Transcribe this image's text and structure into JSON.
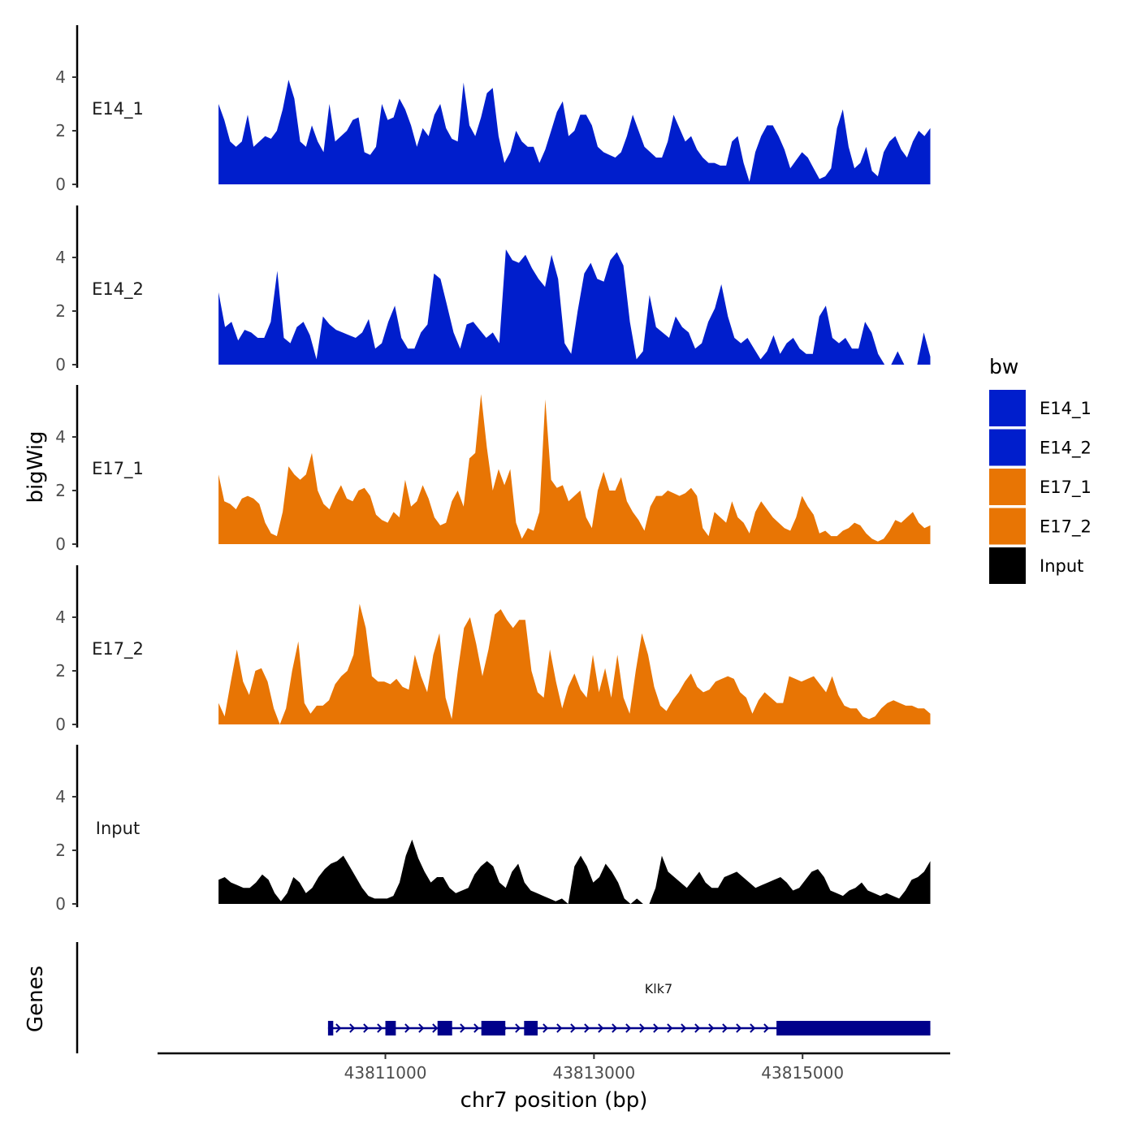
{
  "chart_data": {
    "type": "area",
    "chromosome": "chr7",
    "xlabel": "chr7 position (bp)",
    "ylabel": "bigWig",
    "ylim": [
      0,
      6
    ],
    "yticks": [
      0,
      2,
      4
    ],
    "xlim": [
      43808800,
      43816400
    ],
    "xticks": [
      {
        "value": 43811000,
        "label": "43811000"
      },
      {
        "value": 43813000,
        "label": "43813000"
      },
      {
        "value": 43815000,
        "label": "43815000"
      }
    ],
    "signal_range": [
      43809400,
      43816225
    ],
    "legend": {
      "title": "bw",
      "entries": [
        {
          "name": "E14_1",
          "color": "#001ecc"
        },
        {
          "name": "E14_2",
          "color": "#001ecc"
        },
        {
          "name": "E17_1",
          "color": "#e87504"
        },
        {
          "name": "E17_2",
          "color": "#e87504"
        },
        {
          "name": "Input",
          "color": "#000000"
        }
      ]
    },
    "series": [
      {
        "name": "E14_1",
        "color": "#001ecc",
        "values": [
          3.0,
          2.4,
          1.6,
          1.4,
          1.6,
          2.6,
          1.4,
          1.6,
          1.8,
          1.7,
          2.0,
          2.8,
          3.9,
          3.2,
          1.6,
          1.4,
          2.2,
          1.6,
          1.2,
          3.0,
          1.6,
          1.8,
          2.0,
          2.4,
          2.5,
          1.2,
          1.1,
          1.4,
          3.0,
          2.4,
          2.5,
          3.2,
          2.8,
          2.2,
          1.4,
          2.1,
          1.8,
          2.6,
          3.0,
          2.1,
          1.7,
          1.6,
          3.8,
          2.2,
          1.8,
          2.5,
          3.4,
          3.6,
          1.8,
          0.8,
          1.2,
          2.0,
          1.6,
          1.4,
          1.4,
          0.8,
          1.3,
          2.0,
          2.7,
          3.1,
          1.8,
          2.0,
          2.6,
          2.6,
          2.2,
          1.4,
          1.2,
          1.1,
          1.0,
          1.2,
          1.8,
          2.6,
          2.0,
          1.4,
          1.2,
          1.0,
          1.0,
          1.6,
          2.6,
          2.1,
          1.6,
          1.8,
          1.3,
          1.0,
          0.8,
          0.8,
          0.7,
          0.7,
          1.6,
          1.8,
          0.8,
          0.1,
          1.2,
          1.8,
          2.2,
          2.2,
          1.8,
          1.3,
          0.6,
          0.9,
          1.2,
          1.0,
          0.6,
          0.2,
          0.3,
          0.6,
          2.1,
          2.8,
          1.4,
          0.6,
          0.8,
          1.4,
          0.5,
          0.3,
          1.2,
          1.6,
          1.8,
          1.3,
          1.0,
          1.6,
          2.0,
          1.8,
          2.1
        ]
      },
      {
        "name": "E14_2",
        "color": "#001ecc",
        "values": [
          2.7,
          1.4,
          1.6,
          0.9,
          1.3,
          1.2,
          1.0,
          1.0,
          1.6,
          3.5,
          1.0,
          0.8,
          1.4,
          1.6,
          1.1,
          0.2,
          1.8,
          1.5,
          1.3,
          1.2,
          1.1,
          1.0,
          1.2,
          1.7,
          0.6,
          0.8,
          1.6,
          2.2,
          1.0,
          0.6,
          0.6,
          1.2,
          1.5,
          3.4,
          3.2,
          2.2,
          1.2,
          0.6,
          1.5,
          1.6,
          1.3,
          1.0,
          1.2,
          0.8,
          4.3,
          3.9,
          3.8,
          4.1,
          3.6,
          3.2,
          2.9,
          4.1,
          3.2,
          0.8,
          0.4,
          2.0,
          3.4,
          3.8,
          3.2,
          3.1,
          3.9,
          4.2,
          3.7,
          1.6,
          0.2,
          0.5,
          2.6,
          1.4,
          1.2,
          1.0,
          1.8,
          1.4,
          1.2,
          0.6,
          0.8,
          1.6,
          2.1,
          3.0,
          1.8,
          1.0,
          0.8,
          1.0,
          0.6,
          0.2,
          0.5,
          1.1,
          0.4,
          0.8,
          1.0,
          0.6,
          0.4,
          0.4,
          1.8,
          2.2,
          1.0,
          0.8,
          1.0,
          0.6,
          0.6,
          1.6,
          1.2,
          0.4,
          -0.2,
          0.0,
          0.5,
          0.0,
          0.0,
          0.0,
          1.2,
          0.3
        ]
      },
      {
        "name": "E17_1",
        "color": "#e87504",
        "values": [
          2.6,
          1.6,
          1.5,
          1.3,
          1.7,
          1.8,
          1.7,
          1.5,
          0.8,
          0.4,
          0.3,
          1.2,
          2.9,
          2.6,
          2.4,
          2.6,
          3.4,
          2.0,
          1.5,
          1.3,
          1.8,
          2.2,
          1.7,
          1.6,
          2.0,
          2.1,
          1.8,
          1.1,
          0.9,
          0.8,
          1.2,
          1.0,
          2.4,
          1.4,
          1.6,
          2.2,
          1.7,
          1.0,
          0.7,
          0.8,
          1.6,
          2.0,
          1.4,
          3.2,
          3.4,
          5.6,
          3.6,
          2.0,
          2.8,
          2.2,
          2.8,
          0.8,
          0.2,
          0.6,
          0.5,
          1.2,
          5.4,
          2.4,
          2.1,
          2.2,
          1.6,
          1.8,
          2.0,
          1.0,
          0.6,
          2.0,
          2.7,
          2.0,
          2.0,
          2.5,
          1.6,
          1.2,
          0.9,
          0.5,
          1.4,
          1.8,
          1.8,
          2.0,
          1.9,
          1.8,
          1.9,
          2.1,
          1.8,
          0.6,
          0.3,
          1.2,
          1.0,
          0.8,
          1.6,
          1.0,
          0.8,
          0.4,
          1.2,
          1.6,
          1.3,
          1.0,
          0.8,
          0.6,
          0.5,
          1.0,
          1.8,
          1.4,
          1.1,
          0.4,
          0.5,
          0.3,
          0.3,
          0.5,
          0.6,
          0.8,
          0.7,
          0.4,
          0.2,
          0.1,
          0.2,
          0.5,
          0.9,
          0.8,
          1.0,
          1.2,
          0.8,
          0.6,
          0.7
        ]
      },
      {
        "name": "E17_2",
        "color": "#e87504",
        "values": [
          0.8,
          0.3,
          1.6,
          2.8,
          1.6,
          1.1,
          2.0,
          2.1,
          1.6,
          0.6,
          0.0,
          0.6,
          2.0,
          3.1,
          0.8,
          0.4,
          0.7,
          0.7,
          0.9,
          1.5,
          1.8,
          2.0,
          2.6,
          4.5,
          3.6,
          1.8,
          1.6,
          1.6,
          1.5,
          1.7,
          1.4,
          1.3,
          2.6,
          1.8,
          1.2,
          2.6,
          3.4,
          1.0,
          0.2,
          2.0,
          3.6,
          4.0,
          3.0,
          1.8,
          2.8,
          4.1,
          4.3,
          3.9,
          3.6,
          3.9,
          3.9,
          2.0,
          1.2,
          1.0,
          2.8,
          1.6,
          0.6,
          1.4,
          1.9,
          1.3,
          1.0,
          2.6,
          1.2,
          2.1,
          1.0,
          2.6,
          1.0,
          0.4,
          2.0,
          3.4,
          2.6,
          1.4,
          0.7,
          0.5,
          0.9,
          1.2,
          1.6,
          1.9,
          1.4,
          1.2,
          1.3,
          1.6,
          1.7,
          1.8,
          1.7,
          1.2,
          1.0,
          0.4,
          0.9,
          1.2,
          1.0,
          0.8,
          0.8,
          1.8,
          1.7,
          1.6,
          1.7,
          1.8,
          1.5,
          1.2,
          1.8,
          1.1,
          0.7,
          0.6,
          0.6,
          0.3,
          0.2,
          0.3,
          0.6,
          0.8,
          0.9,
          0.8,
          0.7,
          0.7,
          0.6,
          0.6,
          0.4
        ]
      },
      {
        "name": "Input",
        "color": "#000000",
        "values": [
          0.9,
          1.0,
          0.8,
          0.7,
          0.6,
          0.6,
          0.8,
          1.1,
          0.9,
          0.4,
          0.1,
          0.4,
          1.0,
          0.8,
          0.4,
          0.6,
          1.0,
          1.3,
          1.5,
          1.6,
          1.8,
          1.4,
          1.0,
          0.6,
          0.3,
          0.2,
          0.2,
          0.2,
          0.3,
          0.8,
          1.8,
          2.4,
          1.7,
          1.2,
          0.8,
          1.0,
          1.0,
          0.6,
          0.4,
          0.5,
          0.6,
          1.1,
          1.4,
          1.6,
          1.4,
          0.8,
          0.6,
          1.2,
          1.5,
          0.8,
          0.5,
          0.4,
          0.3,
          0.2,
          0.1,
          0.2,
          0.0,
          1.4,
          1.8,
          1.4,
          0.8,
          1.0,
          1.5,
          1.2,
          0.8,
          0.2,
          0.0,
          0.2,
          0.0,
          0.0,
          0.6,
          1.8,
          1.2,
          1.0,
          0.8,
          0.6,
          0.9,
          1.2,
          0.8,
          0.6,
          0.6,
          1.0,
          1.1,
          1.2,
          1.0,
          0.8,
          0.6,
          0.7,
          0.8,
          0.9,
          1.0,
          0.8,
          0.5,
          0.6,
          0.9,
          1.2,
          1.3,
          1.0,
          0.5,
          0.4,
          0.3,
          0.5,
          0.6,
          0.8,
          0.5,
          0.4,
          0.3,
          0.4,
          0.3,
          0.2,
          0.5,
          0.9,
          1.0,
          1.2,
          1.6
        ]
      }
    ],
    "genes_panel": {
      "label": "Genes",
      "gene": {
        "name": "Klk7",
        "start": 43810450,
        "end": 43816225,
        "color": "#00008b",
        "exons": [
          [
            43810450,
            43810500
          ],
          [
            43811000,
            43811100
          ],
          [
            43811500,
            43811640
          ],
          [
            43811920,
            43812150
          ],
          [
            43812330,
            43812460
          ],
          [
            43814750,
            43816225
          ]
        ]
      }
    }
  }
}
